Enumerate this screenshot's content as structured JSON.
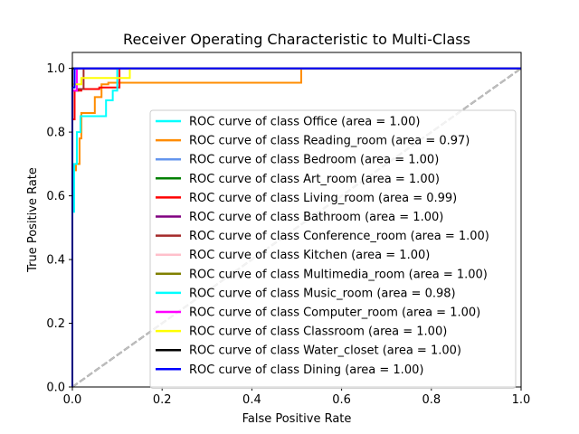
{
  "chart_data": {
    "type": "line",
    "title": "Receiver Operating Characteristic to Multi-Class",
    "xlabel": "False Positive Rate",
    "ylabel": "True Positive Rate",
    "xlim": [
      0,
      1
    ],
    "ylim": [
      0,
      1.05
    ],
    "xticks": [
      "0.0",
      "0.2",
      "0.4",
      "0.6",
      "0.8",
      "1.0"
    ],
    "yticks": [
      "0.0",
      "0.2",
      "0.4",
      "0.6",
      "0.8",
      "1.0"
    ],
    "grid": false,
    "legend_position": "lower-right",
    "reference_lines": [
      {
        "style": "dashed",
        "color": "#000000",
        "x": [
          0,
          1
        ],
        "y": [
          0,
          1
        ]
      },
      {
        "style": "dashed",
        "color": "#bfbfbf",
        "x": [
          0,
          1
        ],
        "y": [
          0,
          1
        ]
      }
    ],
    "series": [
      {
        "name": "ROC curve of class Office (area = 1.00)",
        "color": "#00ffff",
        "x": [
          0,
          0,
          0,
          0,
          0,
          1
        ],
        "y": [
          0,
          0.6,
          0.6,
          1,
          1,
          1
        ]
      },
      {
        "name": "ROC curve of class Reading_room (area = 0.97)",
        "color": "#ff8c00",
        "x": [
          0,
          0,
          0.008,
          0.008,
          0.016,
          0.016,
          0.02,
          0.02,
          0.05,
          0.05,
          0.065,
          0.065,
          0.08,
          0.08,
          0.51,
          0.51,
          1
        ],
        "y": [
          0,
          0.68,
          0.68,
          0.7,
          0.7,
          0.78,
          0.78,
          0.86,
          0.86,
          0.91,
          0.91,
          0.95,
          0.95,
          0.955,
          0.955,
          1,
          1
        ]
      },
      {
        "name": "ROC curve of class Bedroom (area = 1.00)",
        "color": "#6495ed",
        "x": [
          0,
          0,
          1
        ],
        "y": [
          0,
          1,
          1
        ]
      },
      {
        "name": "ROC curve of class Art_room (area = 1.00)",
        "color": "#008000",
        "x": [
          0,
          0,
          1
        ],
        "y": [
          0,
          1,
          1
        ]
      },
      {
        "name": "ROC curve of class Living_room (area = 0.99)",
        "color": "#ff0000",
        "x": [
          0,
          0,
          0.005,
          0.005,
          0.02,
          0.02,
          0.06,
          0.06,
          0.105,
          0.105,
          1
        ],
        "y": [
          0,
          0.84,
          0.84,
          0.93,
          0.93,
          0.935,
          0.935,
          0.94,
          0.94,
          1,
          1
        ]
      },
      {
        "name": "ROC curve of class Bathroom (area = 1.00)",
        "color": "#800080",
        "x": [
          0,
          0,
          1
        ],
        "y": [
          0,
          1,
          1
        ]
      },
      {
        "name": "ROC curve of class Conference_room (area = 1.00)",
        "color": "#a52a2a",
        "x": [
          0,
          0,
          0.012,
          0.012,
          0.025,
          0.025,
          1
        ],
        "y": [
          0,
          0.93,
          0.93,
          0.935,
          0.935,
          1,
          1
        ]
      },
      {
        "name": "ROC curve of class Kitchen (area = 1.00)",
        "color": "#ffc0cb",
        "x": [
          0,
          0,
          1
        ],
        "y": [
          0,
          1,
          1
        ]
      },
      {
        "name": "ROC curve of class Multimedia_room (area = 1.00)",
        "color": "#808000",
        "x": [
          0,
          0,
          1
        ],
        "y": [
          0,
          1,
          1
        ]
      },
      {
        "name": "ROC curve of class Music_room (area = 0.98)",
        "color": "#00ffff",
        "x": [
          0,
          0,
          0.004,
          0.004,
          0.01,
          0.01,
          0.018,
          0.018,
          0.075,
          0.075,
          0.09,
          0.09,
          0.1,
          0.1,
          1
        ],
        "y": [
          0,
          0.55,
          0.55,
          0.7,
          0.7,
          0.8,
          0.8,
          0.85,
          0.85,
          0.9,
          0.9,
          0.93,
          0.93,
          1,
          1
        ]
      },
      {
        "name": "ROC curve of class Computer_room (area = 1.00)",
        "color": "#ff00ff",
        "x": [
          0,
          0,
          0.01,
          0.01,
          1
        ],
        "y": [
          0,
          0.93,
          0.93,
          1,
          1
        ]
      },
      {
        "name": "ROC curve of class Classroom (area = 1.00)",
        "color": "#ffff00",
        "x": [
          0,
          0,
          0.02,
          0.02,
          0.128,
          0.128,
          1
        ],
        "y": [
          0,
          0.95,
          0.95,
          0.97,
          0.97,
          1,
          1
        ]
      },
      {
        "name": "ROC curve of class Water_closet (area = 1.00)",
        "color": "#000000",
        "x": [
          0,
          0,
          1
        ],
        "y": [
          0,
          1,
          1
        ]
      },
      {
        "name": "ROC curve of class Dining (area = 1.00)",
        "color": "#0000ff",
        "x": [
          0,
          0,
          0.005,
          0.005,
          1
        ],
        "y": [
          0,
          0.94,
          0.94,
          1,
          1
        ]
      }
    ]
  }
}
